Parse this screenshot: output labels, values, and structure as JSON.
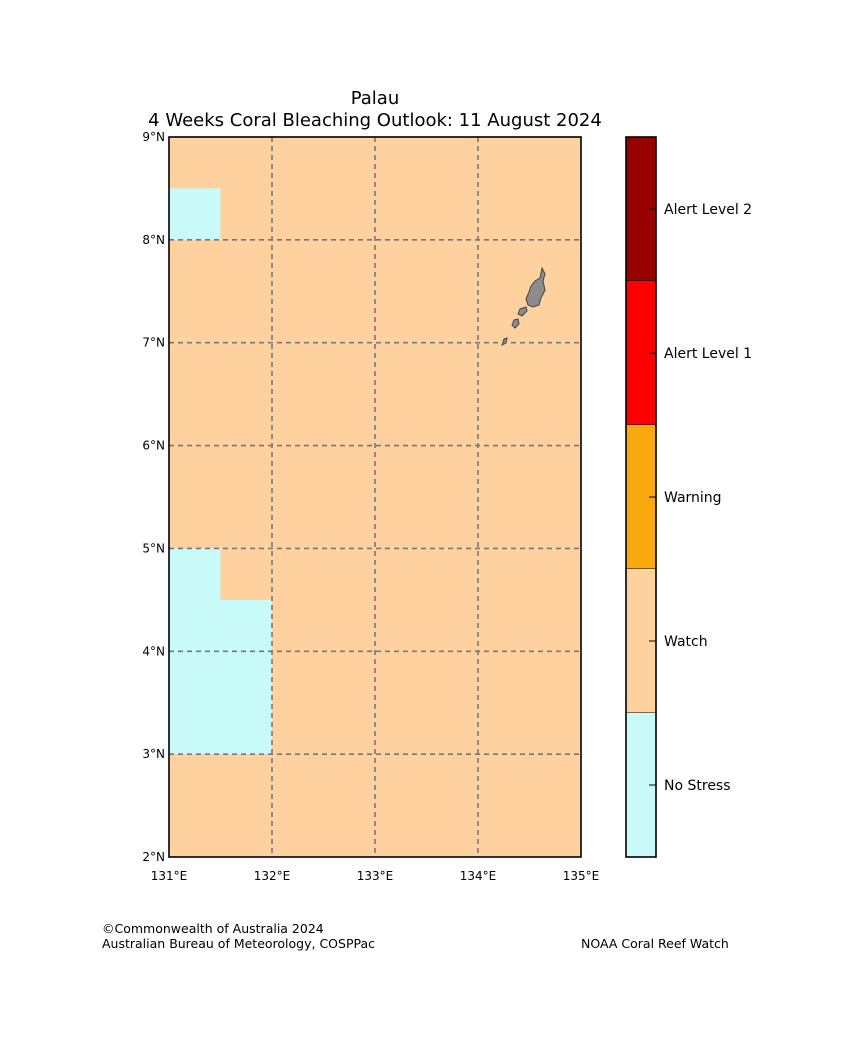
{
  "title": {
    "line1": "Palau",
    "line2": "4 Weeks Coral Bleaching Outlook: 11 August 2024"
  },
  "map": {
    "lon_range": [
      131,
      135
    ],
    "lat_range": [
      2,
      9
    ],
    "lon_ticks": [
      {
        "value": 131,
        "label": "131°E"
      },
      {
        "value": 132,
        "label": "132°E"
      },
      {
        "value": 133,
        "label": "133°E"
      },
      {
        "value": 134,
        "label": "134°E"
      },
      {
        "value": 135,
        "label": "135°E"
      }
    ],
    "lat_ticks": [
      {
        "value": 9,
        "label": "9°N"
      },
      {
        "value": 8,
        "label": "8°N"
      },
      {
        "value": 7,
        "label": "7°N"
      },
      {
        "value": 6,
        "label": "6°N"
      },
      {
        "value": 5,
        "label": "5°N"
      },
      {
        "value": 4,
        "label": "4°N"
      },
      {
        "value": 3,
        "label": "3°N"
      },
      {
        "value": 2,
        "label": "2°N"
      }
    ],
    "background_category": "Watch",
    "no_stress_cells": [
      {
        "lon": [
          131.0,
          131.5
        ],
        "lat": [
          8.0,
          8.5
        ]
      },
      {
        "lon": [
          131.0,
          131.5
        ],
        "lat": [
          4.5,
          5.0
        ]
      },
      {
        "lon": [
          131.0,
          132.0
        ],
        "lat": [
          3.0,
          4.5
        ]
      }
    ],
    "land_color": "#8c8c8c",
    "grid_color": "#777777"
  },
  "legend": {
    "categories": [
      {
        "label": "Alert Level 2",
        "color": "#990000"
      },
      {
        "label": "Alert Level 1",
        "color": "#ff0000"
      },
      {
        "label": "Warning",
        "color": "#f9a80e"
      },
      {
        "label": "Watch",
        "color": "#fed19f"
      },
      {
        "label": "No Stress",
        "color": "#c8fafa"
      }
    ]
  },
  "footer": {
    "copyright": "©Commonwealth of Australia 2024",
    "agency": "Australian Bureau of Meteorology, COSPPac",
    "partner": "NOAA Coral Reef Watch"
  }
}
